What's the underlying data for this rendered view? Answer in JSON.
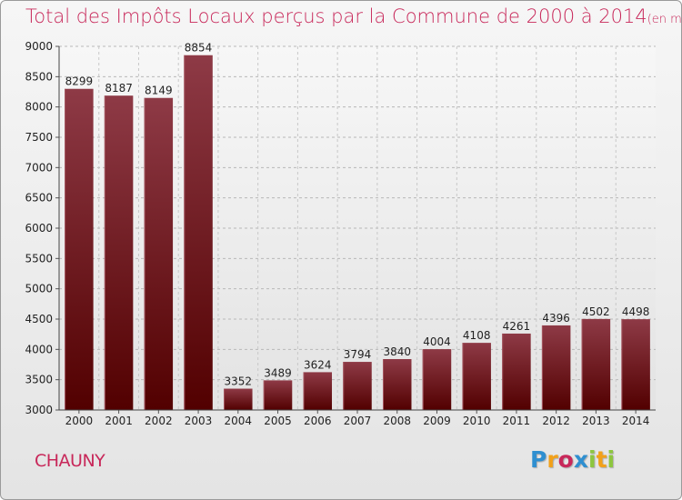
{
  "title": "Total des Impôts Locaux perçus par la Commune de 2000 à 2014",
  "title_unit": "(en milliers d'€)",
  "commune": "CHAUNY",
  "brand": {
    "name": "Proxiti",
    "letter_colors": [
      "#2f8fd0",
      "#f2a11a",
      "#c8285a",
      "#2f8fd0",
      "#8dc63f",
      "#f2a11a",
      "#8dc63f"
    ]
  },
  "colors": {
    "title": "#c8285a",
    "bar_top": "#8e3a46",
    "bar_bottom": "#520000",
    "plot_bg_top": "#f7f7f7",
    "plot_bg_bottom": "#e3e3e3"
  },
  "chart_data": {
    "type": "bar",
    "categories": [
      "2000",
      "2001",
      "2002",
      "2003",
      "2004",
      "2005",
      "2006",
      "2007",
      "2008",
      "2009",
      "2010",
      "2011",
      "2012",
      "2013",
      "2014"
    ],
    "values": [
      8299,
      8187,
      8149,
      8854,
      3352,
      3489,
      3624,
      3794,
      3840,
      4004,
      4108,
      4261,
      4396,
      4502,
      4498
    ],
    "ylim": [
      3000,
      9000
    ],
    "yticks": [
      3000,
      3500,
      4000,
      4500,
      5000,
      5500,
      6000,
      6500,
      7000,
      7500,
      8000,
      8500,
      9000
    ],
    "grid": true,
    "data_labels": true,
    "title": "Total des Impôts Locaux perçus par la Commune de 2000 à 2014",
    "xlabel": "",
    "ylabel": ""
  }
}
